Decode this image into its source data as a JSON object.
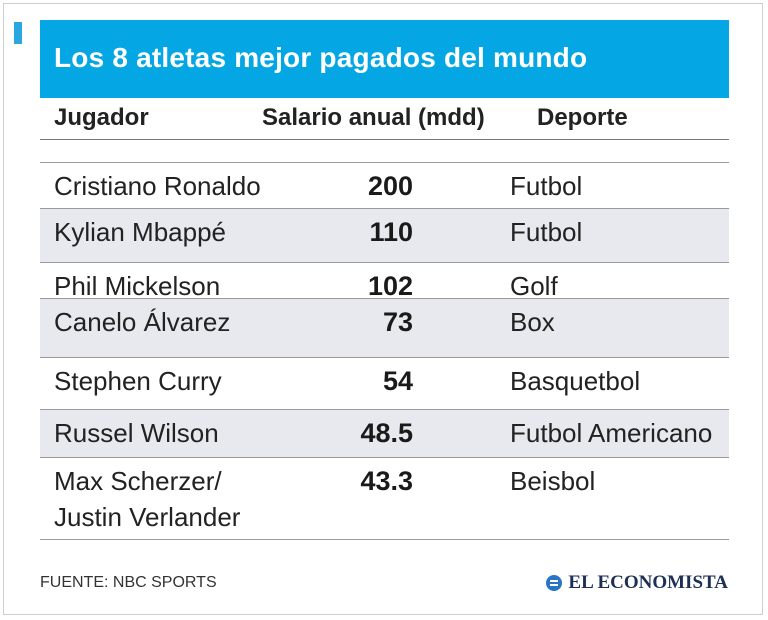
{
  "chart_data": {
    "type": "table",
    "title": "Los 8 atletas mejor pagados del mundo",
    "columns": [
      "Jugador",
      "Salario anual (mdd)",
      "Deporte"
    ],
    "rows": [
      {
        "player": "Cristiano Ronaldo",
        "salary": "200",
        "sport": "Futbol"
      },
      {
        "player": "Kylian Mbappé",
        "salary": "110",
        "sport": "Futbol"
      },
      {
        "player": "Phil Mickelson",
        "salary": "102",
        "sport": "Golf"
      },
      {
        "player": "Canelo Álvarez",
        "salary": "73",
        "sport": "Box"
      },
      {
        "player": "Stephen Curry",
        "salary": "54",
        "sport": "Basquetbol"
      },
      {
        "player": "Russel Wilson",
        "salary": "48.5",
        "sport": "Futbol Americano"
      },
      {
        "player": "Max Scherzer/",
        "player_line2": "Justin Verlander",
        "salary": "43.3",
        "sport": "Beisbol"
      }
    ],
    "source": "FUENTE: NBC SPORTS",
    "brand": "EL ECONOMISTA"
  },
  "colors": {
    "title_bar": "#04a7e4",
    "row_shade": "#e8e9ee"
  }
}
